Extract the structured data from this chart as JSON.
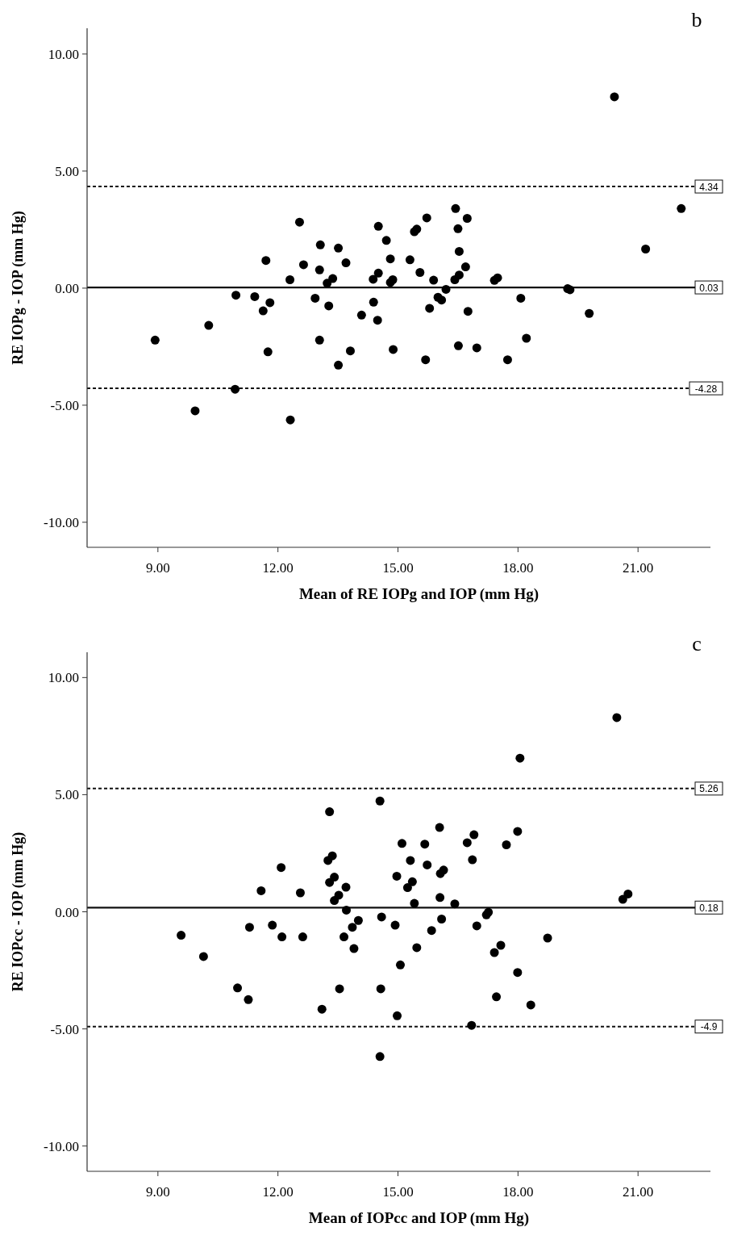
{
  "chart_data": [
    {
      "type": "scatter",
      "annotations": [
        "b"
      ],
      "xlabel": "Mean of RE IOPg and IOP (mm Hg)",
      "ylabel": "RE IOPg - IOP (mm Hg)",
      "marker": "circle",
      "grid": false,
      "xlim": [
        7.23,
        22.81
      ],
      "ylim": [
        -11.07,
        11.1
      ],
      "xticks": [
        {
          "value": 9,
          "label": "9.00"
        },
        {
          "value": 12,
          "label": "12.00"
        },
        {
          "value": 15,
          "label": "15.00"
        },
        {
          "value": 18,
          "label": "18.00"
        },
        {
          "value": 21,
          "label": "21.00"
        }
      ],
      "yticks": [
        {
          "value": -10,
          "label": "-10.00"
        },
        {
          "value": -5,
          "label": "-5.00"
        },
        {
          "value": 0,
          "label": "0.00"
        },
        {
          "value": 5,
          "label": "5.00"
        },
        {
          "value": 10,
          "label": "10.00"
        }
      ],
      "ref_lines": [
        {
          "axis": "y",
          "value": 4.34,
          "label": "4.34",
          "line_style": "dotted"
        },
        {
          "axis": "y",
          "value": 0.03,
          "label": "0.03",
          "line_style": "solid"
        },
        {
          "axis": "y",
          "value": -4.28,
          "label": "-4.28",
          "line_style": "dotted"
        }
      ],
      "series": [
        {
          "color": "#000000",
          "x": [
            8.93,
            10.27,
            9.93,
            10.95,
            10.93,
            11.42,
            11.7,
            11.8,
            11.63,
            11.75,
            12.3,
            12.31,
            12.54,
            12.64,
            12.93,
            13.06,
            13.04,
            13.04,
            13.23,
            13.37,
            13.27,
            13.51,
            13.51,
            13.7,
            13.81,
            14.09,
            14.38,
            14.51,
            14.39,
            14.49,
            14.51,
            14.71,
            14.81,
            14.81,
            14.87,
            14.88,
            15.41,
            15.47,
            15.72,
            15.3,
            15.55,
            15.89,
            16.2,
            16.0,
            16.09,
            15.79,
            15.69,
            16.44,
            16.5,
            16.73,
            16.53,
            16.42,
            16.53,
            16.69,
            16.75,
            16.51,
            16.97,
            17.41,
            17.49,
            18.07,
            18.21,
            17.74,
            19.24,
            19.3,
            19.78,
            20.41,
            21.19,
            22.08
          ],
          "values": [
            -2.22,
            -1.59,
            -5.24,
            -0.3,
            -4.32,
            -0.36,
            1.18,
            -0.62,
            -0.97,
            -2.72,
            0.36,
            -5.63,
            2.82,
            1.0,
            -0.43,
            1.85,
            0.78,
            -2.22,
            0.21,
            0.41,
            -0.76,
            1.71,
            -3.29,
            1.08,
            -2.68,
            -1.15,
            0.38,
            0.64,
            -0.6,
            -1.37,
            2.64,
            2.04,
            1.25,
            0.24,
            0.36,
            -2.62,
            2.41,
            2.52,
            3.0,
            1.21,
            0.67,
            0.34,
            -0.05,
            -0.39,
            -0.51,
            -0.86,
            -3.06,
            3.4,
            2.54,
            2.98,
            1.57,
            0.36,
            0.56,
            0.91,
            -0.99,
            -2.46,
            -2.55,
            0.33,
            0.44,
            -0.43,
            -2.14,
            -3.06,
            -0.02,
            -0.07,
            -1.08,
            8.17,
            1.67,
            3.4
          ]
        }
      ]
    },
    {
      "type": "scatter",
      "annotations": [
        "c"
      ],
      "xlabel": "Mean of IOPcc and IOP (mm Hg)",
      "ylabel": "RE IOPcc - IOP (mm Hg)",
      "marker": "circle",
      "grid": false,
      "xlim": [
        7.23,
        22.81
      ],
      "ylim": [
        -11.08,
        11.08
      ],
      "xticks": [
        {
          "value": 9,
          "label": "9.00"
        },
        {
          "value": 12,
          "label": "12.00"
        },
        {
          "value": 15,
          "label": "15.00"
        },
        {
          "value": 18,
          "label": "18.00"
        },
        {
          "value": 21,
          "label": "21.00"
        }
      ],
      "yticks": [
        {
          "value": -10,
          "label": "-10.00"
        },
        {
          "value": -5,
          "label": "-5.00"
        },
        {
          "value": 0,
          "label": "0.00"
        },
        {
          "value": 5,
          "label": "5.00"
        },
        {
          "value": 10,
          "label": "10.00"
        }
      ],
      "ref_lines": [
        {
          "axis": "y",
          "value": 5.26,
          "label": "5.26",
          "line_style": "dotted"
        },
        {
          "axis": "y",
          "value": 0.18,
          "label": "0.18",
          "line_style": "solid"
        },
        {
          "axis": "y",
          "value": -4.9,
          "label": "-4.9",
          "line_style": "dotted"
        }
      ],
      "series": [
        {
          "color": "#000000",
          "x": [
            9.58,
            10.14,
            10.99,
            11.26,
            11.29,
            11.58,
            11.86,
            12.08,
            12.1,
            12.56,
            12.62,
            13.1,
            13.29,
            13.25,
            13.36,
            13.29,
            13.41,
            13.41,
            13.52,
            13.7,
            13.71,
            13.54,
            13.65,
            13.9,
            13.86,
            14.01,
            14.55,
            14.59,
            14.57,
            14.55,
            14.93,
            14.97,
            15.06,
            14.98,
            15.1,
            15.31,
            15.36,
            15.24,
            15.41,
            15.47,
            15.67,
            15.73,
            15.84,
            16.04,
            16.06,
            16.14,
            16.05,
            16.09,
            16.42,
            16.73,
            16.9,
            16.86,
            16.97,
            17.21,
            17.26,
            17.41,
            17.57,
            17.46,
            17.99,
            17.71,
            17.99,
            18.05,
            18.32,
            18.74,
            16.84,
            20.47,
            20.62,
            20.75
          ],
          "values": [
            -1.0,
            -1.91,
            -3.25,
            -3.75,
            -0.66,
            0.9,
            -0.57,
            1.89,
            -1.07,
            0.81,
            -1.07,
            -4.16,
            4.27,
            2.19,
            2.39,
            1.25,
            1.48,
            0.48,
            0.71,
            1.05,
            0.07,
            -3.29,
            -1.07,
            -1.57,
            -0.66,
            -0.37,
            4.73,
            -0.22,
            -3.29,
            -6.18,
            -0.57,
            1.52,
            -2.27,
            -4.44,
            2.92,
            2.19,
            1.28,
            1.03,
            0.36,
            -1.53,
            2.89,
            2.0,
            -0.8,
            3.6,
            1.63,
            1.78,
            0.61,
            -0.31,
            0.34,
            2.95,
            3.29,
            2.22,
            -0.6,
            -0.13,
            -0.02,
            -1.74,
            -1.43,
            -3.63,
            -2.59,
            2.86,
            3.43,
            6.56,
            -3.98,
            -1.12,
            -4.85,
            8.29,
            0.53,
            0.76
          ]
        }
      ]
    }
  ]
}
